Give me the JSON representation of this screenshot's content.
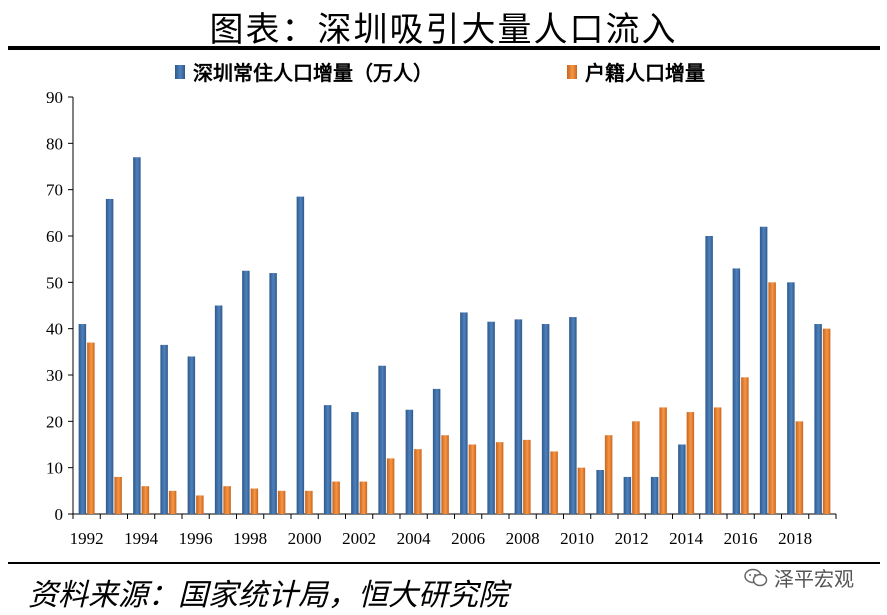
{
  "page": {
    "title": "图表：深圳吸引大量人口流入",
    "source": "资料来源：国家统计局，恒大研究院",
    "watermark": "泽平宏观"
  },
  "colors": {
    "series1": "#4f81bd",
    "series1_dark": "#2e5a8c",
    "series2": "#f79646",
    "series2_dark": "#c8651e"
  },
  "chart_data": {
    "type": "bar",
    "title": "",
    "xlabel": "",
    "ylabel": "",
    "ylim": [
      0,
      90
    ],
    "yticks": [
      0,
      10,
      20,
      30,
      40,
      50,
      60,
      70,
      80,
      90
    ],
    "legend_position": "top",
    "categories": [
      1992,
      1993,
      1994,
      1995,
      1996,
      1997,
      1998,
      1999,
      2000,
      2001,
      2002,
      2003,
      2004,
      2005,
      2006,
      2007,
      2008,
      2009,
      2010,
      2011,
      2012,
      2013,
      2014,
      2015,
      2016,
      2017,
      2018,
      2019
    ],
    "x_tick_labels": [
      "1992",
      "1994",
      "1996",
      "1998",
      "2000",
      "2002",
      "2004",
      "2006",
      "2008",
      "2010",
      "2012",
      "2014",
      "2016",
      "2018"
    ],
    "series": [
      {
        "name": "深圳常住人口增量（万人）",
        "values": [
          41,
          68,
          77,
          36.5,
          34,
          45,
          52.5,
          52,
          68.5,
          23.5,
          22,
          32,
          22.5,
          27,
          43.5,
          41.5,
          42,
          41,
          42.5,
          9.5,
          8,
          8,
          15,
          60,
          53,
          62,
          50,
          41
        ]
      },
      {
        "name": "户籍人口增量",
        "values": [
          37,
          8,
          6,
          5,
          4,
          6,
          5.5,
          5,
          5,
          7,
          7,
          12,
          14,
          17,
          15,
          15.5,
          16,
          13.5,
          10,
          17,
          20,
          23,
          22,
          23,
          29.5,
          50,
          20,
          40
        ]
      }
    ]
  }
}
